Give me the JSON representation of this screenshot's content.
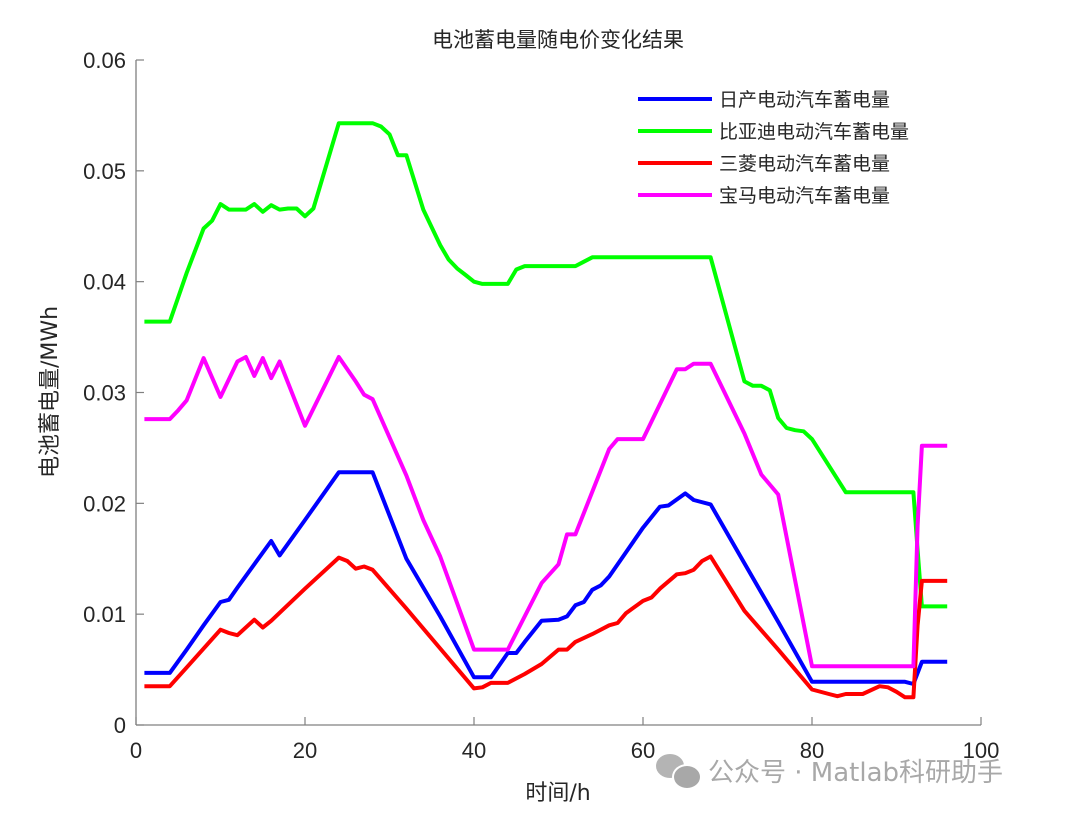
{
  "chart_data": {
    "type": "line",
    "title": "电池蓄电量随电价变化结果",
    "xlabel": "时间/h",
    "ylabel": "电池蓄电量/MWh",
    "xlim": [
      0,
      100
    ],
    "ylim": [
      0,
      0.06
    ],
    "xticks": [
      0,
      20,
      40,
      60,
      80,
      100
    ],
    "xtick_labels": [
      "0",
      "20",
      "40",
      "60",
      "80",
      "100"
    ],
    "yticks": [
      0,
      0.01,
      0.02,
      0.03,
      0.04,
      0.05,
      0.06
    ],
    "ytick_labels": [
      "0",
      "0.01",
      "0.02",
      "0.03",
      "0.04",
      "0.05",
      "0.06"
    ],
    "grid": false,
    "legend_position": "upper right",
    "series": [
      {
        "name": "日产电动汽车蓄电量",
        "color": "#0000FF",
        "x": [
          1,
          4,
          6,
          8,
          10,
          11,
          12,
          14,
          16,
          17,
          20,
          24,
          28,
          32,
          36,
          40,
          42,
          44,
          45,
          46,
          48,
          50,
          51,
          52,
          53,
          54,
          55,
          56,
          58,
          60,
          62,
          63,
          65,
          66,
          68,
          72,
          76,
          80,
          84,
          88,
          91,
          92,
          93,
          96
        ],
        "values": [
          0.0047,
          0.0047,
          0.0068,
          0.009,
          0.0111,
          0.0113,
          0.0124,
          0.0145,
          0.0166,
          0.0153,
          0.0185,
          0.0228,
          0.0228,
          0.015,
          0.0098,
          0.0043,
          0.0043,
          0.0065,
          0.0065,
          0.0075,
          0.0094,
          0.0095,
          0.0098,
          0.0108,
          0.0111,
          0.0122,
          0.0126,
          0.0134,
          0.0156,
          0.0178,
          0.0197,
          0.0198,
          0.0209,
          0.0203,
          0.0199,
          0.0146,
          0.0093,
          0.0039,
          0.0039,
          0.0039,
          0.0039,
          0.0037,
          0.0057,
          0.0057
        ]
      },
      {
        "name": "比亚迪电动汽车蓄电量",
        "color": "#00FF00",
        "x": [
          1,
          4,
          6,
          8,
          9,
          10,
          11,
          13,
          14,
          15,
          16,
          17,
          18,
          19,
          20,
          21,
          24,
          25,
          28,
          29,
          30,
          31,
          32,
          34,
          36,
          37,
          38,
          39,
          40,
          41,
          44,
          45,
          46,
          52,
          53,
          54,
          56,
          68,
          72,
          73,
          74,
          75,
          76,
          77,
          78,
          79,
          80,
          84,
          92,
          92.5,
          93,
          96
        ],
        "values": [
          0.0364,
          0.0364,
          0.0408,
          0.0448,
          0.0455,
          0.047,
          0.0465,
          0.0465,
          0.047,
          0.0463,
          0.0469,
          0.0465,
          0.0466,
          0.0466,
          0.0459,
          0.0466,
          0.0543,
          0.0543,
          0.0543,
          0.054,
          0.0533,
          0.0514,
          0.0514,
          0.0465,
          0.0433,
          0.042,
          0.0412,
          0.0406,
          0.04,
          0.0398,
          0.0398,
          0.0411,
          0.0414,
          0.0414,
          0.0418,
          0.0422,
          0.0422,
          0.0422,
          0.031,
          0.0306,
          0.0306,
          0.0302,
          0.0277,
          0.0268,
          0.0266,
          0.0265,
          0.0258,
          0.021,
          0.021,
          0.0158,
          0.0107,
          0.0107
        ]
      },
      {
        "name": "三菱电动汽车蓄电量",
        "color": "#FF0000",
        "x": [
          1,
          4,
          6,
          10,
          11,
          12,
          14,
          15,
          16,
          20,
          24,
          25,
          26,
          27,
          28,
          32,
          36,
          40,
          41,
          42,
          44,
          46,
          48,
          50,
          51,
          52,
          54,
          56,
          57,
          58,
          60,
          61,
          62,
          64,
          65,
          66,
          67,
          68,
          72,
          76,
          80,
          82,
          83,
          84,
          86,
          88,
          89,
          90,
          91,
          92,
          92.5,
          93,
          96
        ],
        "values": [
          0.0035,
          0.0035,
          0.0052,
          0.0086,
          0.0083,
          0.0081,
          0.0095,
          0.0088,
          0.0094,
          0.0123,
          0.0151,
          0.0148,
          0.0141,
          0.0143,
          0.014,
          0.0105,
          0.0069,
          0.0033,
          0.0034,
          0.0038,
          0.0038,
          0.0046,
          0.0055,
          0.0068,
          0.0068,
          0.0075,
          0.0082,
          0.009,
          0.0092,
          0.0101,
          0.0112,
          0.0115,
          0.0123,
          0.0136,
          0.0137,
          0.014,
          0.0148,
          0.0152,
          0.0103,
          0.0068,
          0.0032,
          0.0028,
          0.0026,
          0.0028,
          0.0028,
          0.0035,
          0.0034,
          0.003,
          0.0025,
          0.0025,
          0.009,
          0.013,
          0.013
        ]
      },
      {
        "name": "宝马电动汽车蓄电量",
        "color": "#FF00FF",
        "x": [
          1,
          4,
          5,
          6,
          8,
          10,
          12,
          13,
          14,
          15,
          16,
          17,
          20,
          24,
          26,
          27,
          28,
          32,
          34,
          36,
          40,
          44,
          48,
          50,
          51,
          52,
          56,
          57,
          58,
          60,
          64,
          65,
          66,
          68,
          72,
          74,
          76,
          80,
          92,
          92.5,
          93,
          96
        ],
        "values": [
          0.0276,
          0.0276,
          0.0284,
          0.0293,
          0.0331,
          0.0296,
          0.0328,
          0.0332,
          0.0315,
          0.0331,
          0.0313,
          0.0328,
          0.027,
          0.0332,
          0.031,
          0.0298,
          0.0294,
          0.0225,
          0.0185,
          0.0152,
          0.0068,
          0.0068,
          0.0128,
          0.0145,
          0.0172,
          0.0172,
          0.0249,
          0.0258,
          0.0258,
          0.0258,
          0.0321,
          0.0321,
          0.0326,
          0.0326,
          0.0263,
          0.0226,
          0.0208,
          0.0053,
          0.0053,
          0.018,
          0.0252,
          0.0252
        ]
      }
    ]
  },
  "legend": {
    "items": [
      {
        "label": "日产电动汽车蓄电量",
        "color": "#0000FF"
      },
      {
        "label": "比亚迪电动汽车蓄电量",
        "color": "#00FF00"
      },
      {
        "label": "三菱电动汽车蓄电量",
        "color": "#FF0000"
      },
      {
        "label": "宝马电动汽车蓄电量",
        "color": "#FF00FF"
      }
    ]
  },
  "watermark": {
    "text": "公众号 · Matlab科研助手",
    "icon": "wechat-icon"
  }
}
